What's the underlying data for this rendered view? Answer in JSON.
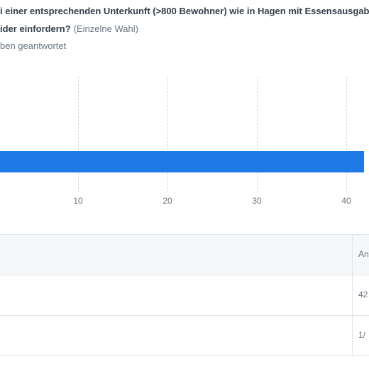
{
  "question": {
    "line1": "i einer entsprechenden Unterkunft (>800 Bewohner) wie in Hagen mit Essensausgab",
    "line2": "ider einfordern?",
    "type_label": "(Einzelne Wahl)",
    "answered_text": "ben geantwortet"
  },
  "chart_data": {
    "type": "bar",
    "orientation": "horizontal",
    "title": "",
    "xlabel": "",
    "ylabel": "",
    "x_ticks": [
      "10",
      "20",
      "30",
      "40"
    ],
    "series": [
      {
        "values": [
          42
        ]
      }
    ],
    "bar_color": "#1f7ae8",
    "grid": true
  },
  "table": {
    "header_label": "An",
    "rows": [
      {
        "value": "42"
      },
      {
        "value": "1/"
      }
    ]
  }
}
